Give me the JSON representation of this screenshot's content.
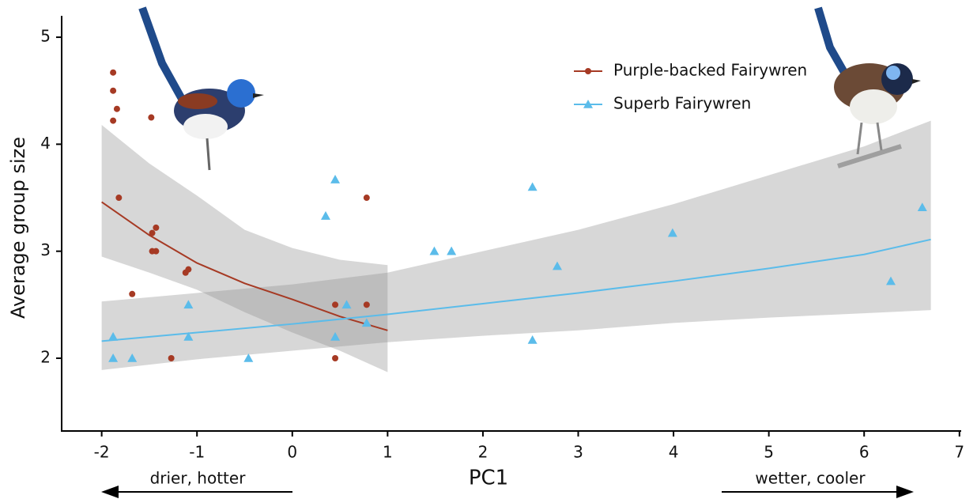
{
  "chart_data": {
    "type": "scatter",
    "x_label": "PC1",
    "y_label": "Average group size",
    "xlim": [
      -2.42,
      7.01
    ],
    "ylim": [
      1.32,
      5.2
    ],
    "xticks": [
      -2,
      -1,
      0,
      1,
      2,
      3,
      4,
      5,
      6,
      7
    ],
    "yticks": [
      2,
      3,
      4,
      5
    ],
    "grid": false,
    "legend": "upper right",
    "series": [
      {
        "name": "Purple-backed Fairywren",
        "color": "#a63a24",
        "marker": "circle",
        "x": [
          -1.88,
          -1.88,
          -1.84,
          -1.88,
          -1.48,
          -1.82,
          -1.43,
          -1.47,
          -1.47,
          -1.43,
          -1.09,
          -1.12,
          -1.68,
          -1.27,
          0.45,
          0.78,
          0.45,
          0.78
        ],
        "values": [
          4.67,
          4.5,
          4.33,
          4.22,
          4.25,
          3.5,
          3.22,
          3.17,
          3.0,
          3.0,
          2.83,
          2.8,
          2.6,
          2.0,
          2.5,
          2.5,
          2.0,
          3.5
        ]
      },
      {
        "name": "Superb Fairywren",
        "color": "#5bbcea",
        "marker": "triangle",
        "x": [
          -1.88,
          -1.88,
          -1.68,
          -1.09,
          -1.09,
          -0.46,
          0.35,
          0.45,
          0.45,
          0.57,
          0.78,
          1.49,
          1.67,
          2.52,
          2.52,
          2.78,
          3.99,
          6.28,
          6.61
        ],
        "values": [
          2.2,
          2.0,
          2.0,
          2.5,
          2.2,
          2.0,
          3.33,
          3.67,
          2.2,
          2.5,
          2.33,
          3.0,
          3.0,
          3.6,
          2.17,
          2.86,
          3.17,
          2.72,
          3.41
        ]
      }
    ],
    "fits": [
      {
        "color": "#a63a24",
        "x": [
          -2,
          -1.5,
          -1,
          -0.5,
          0,
          0.5,
          1
        ],
        "values": [
          3.46,
          3.15,
          2.89,
          2.7,
          2.55,
          2.39,
          2.26
        ],
        "upper": [
          4.18,
          3.82,
          3.52,
          3.2,
          3.03,
          2.92,
          2.87
        ],
        "lower": [
          2.95,
          2.8,
          2.64,
          2.43,
          2.24,
          2.07,
          1.87
        ]
      },
      {
        "color": "#5bbcea",
        "x": [
          -2,
          -1,
          0,
          1,
          2,
          3,
          4,
          5,
          6,
          6.7
        ],
        "values": [
          2.16,
          2.24,
          2.32,
          2.41,
          2.51,
          2.61,
          2.72,
          2.84,
          2.97,
          3.11
        ],
        "upper": [
          2.53,
          2.61,
          2.69,
          2.8,
          3.0,
          3.2,
          3.44,
          3.71,
          3.98,
          4.22
        ],
        "lower": [
          1.89,
          1.99,
          2.07,
          2.15,
          2.21,
          2.26,
          2.33,
          2.38,
          2.42,
          2.45
        ]
      }
    ],
    "annotations": [
      "drier, hotter",
      "wetter, cooler"
    ]
  }
}
